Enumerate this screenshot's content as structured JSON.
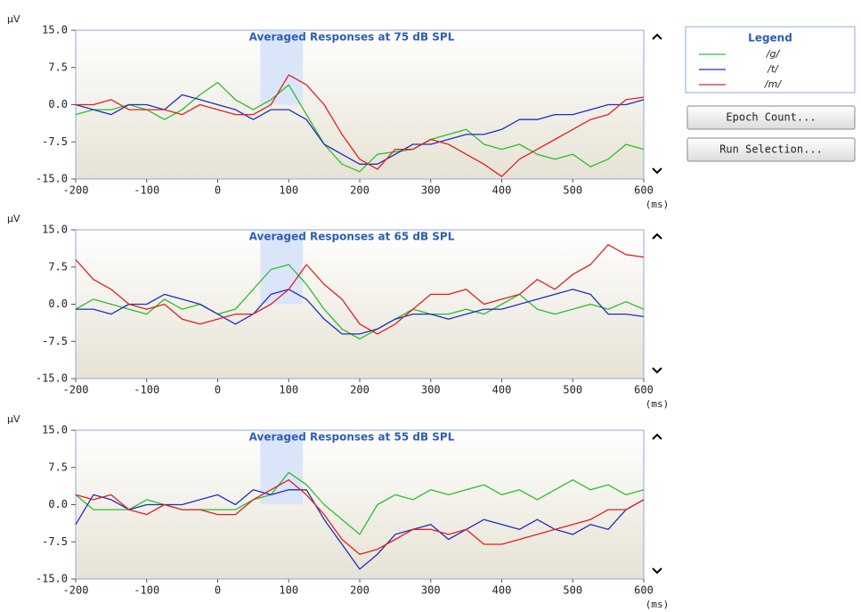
{
  "legend": {
    "title": "Legend"
  },
  "buttons": [
    "Epoch Count...",
    "Run Selection..."
  ],
  "chart_data": [
    {
      "type": "line",
      "title": "Averaged Responses at 75 dB SPL",
      "y_label": "µV",
      "x_label": "(ms)",
      "xlim": [
        -200,
        600
      ],
      "xticks": [
        -200,
        -100,
        0,
        100,
        200,
        300,
        400,
        500,
        600
      ],
      "ylim": [
        -15,
        15
      ],
      "yticks": [
        {
          "value": 15,
          "label": "15.0"
        },
        7.5,
        {
          "value": 0,
          "label": "0.0"
        },
        -7.5,
        {
          "value": -15,
          "label": "-15.0"
        }
      ],
      "shaded_region": [
        60,
        120
      ],
      "x": [
        -200,
        -175,
        -150,
        -125,
        -100,
        -75,
        -50,
        -25,
        0,
        25,
        50,
        75,
        100,
        125,
        150,
        175,
        200,
        225,
        250,
        275,
        300,
        325,
        350,
        375,
        400,
        425,
        450,
        475,
        500,
        525,
        550,
        575,
        600
      ],
      "series": [
        {
          "name": "/g/",
          "color": "#2bbf2b",
          "values": [
            -2,
            -1,
            -1,
            0,
            -1,
            -3,
            -1,
            2,
            4.5,
            1,
            -1,
            1,
            4,
            -2,
            -8,
            -12,
            -13.5,
            -10,
            -9.5,
            -9,
            -7,
            -6,
            -5,
            -8,
            -9,
            -8,
            -10,
            -11,
            -10,
            -12.5,
            -11,
            -8,
            -9
          ]
        },
        {
          "name": "/t/",
          "color": "#1f2fbf",
          "values": [
            0,
            -1,
            -2,
            0,
            0,
            -1,
            2,
            1,
            0,
            -1,
            -3,
            -1,
            -1,
            -3,
            -8,
            -10,
            -12,
            -12,
            -10,
            -8,
            -8,
            -7,
            -6,
            -6,
            -5,
            -3,
            -3,
            -2,
            -2,
            -1,
            0,
            0,
            1
          ]
        },
        {
          "name": "/m/",
          "color": "#e02020",
          "values": [
            0,
            0,
            1,
            -1,
            -1,
            -1,
            -2,
            0,
            -1,
            -2,
            -2,
            0,
            6,
            4,
            0,
            -6,
            -11,
            -13,
            -9,
            -9,
            -7,
            -8,
            -10,
            -12,
            -14.5,
            -11,
            -9,
            -7,
            -5,
            -3,
            -2,
            1,
            1.5
          ]
        }
      ]
    },
    {
      "type": "line",
      "title": "Averaged Responses at 65 dB SPL",
      "y_label": "µV",
      "x_label": "(ms)",
      "xlim": [
        -200,
        600
      ],
      "xticks": [
        -200,
        -100,
        0,
        100,
        200,
        300,
        400,
        500,
        600
      ],
      "ylim": [
        -15,
        15
      ],
      "yticks": [
        {
          "value": 15,
          "label": "15.0"
        },
        7.5,
        {
          "value": 0,
          "label": "0.0"
        },
        -7.5,
        {
          "value": -15,
          "label": "-15.0"
        }
      ],
      "shaded_region": [
        60,
        120
      ],
      "x": [
        -200,
        -175,
        -150,
        -125,
        -100,
        -75,
        -50,
        -25,
        0,
        25,
        50,
        75,
        100,
        125,
        150,
        175,
        200,
        225,
        250,
        275,
        300,
        325,
        350,
        375,
        400,
        425,
        450,
        475,
        500,
        525,
        550,
        575,
        600
      ],
      "series": [
        {
          "name": "/g/",
          "color": "#2bbf2b",
          "values": [
            -1,
            1,
            0,
            -1,
            -2,
            1,
            -1,
            0,
            -2,
            -1,
            3,
            7,
            8,
            4,
            -1,
            -5,
            -7,
            -5,
            -3,
            -1,
            -2,
            -2,
            -1,
            -2,
            0,
            2,
            -1,
            -2,
            -1,
            0,
            -1,
            0.5,
            -1
          ]
        },
        {
          "name": "/t/",
          "color": "#1f2fbf",
          "values": [
            -1,
            -1,
            -2,
            0,
            0,
            2,
            1,
            0,
            -2,
            -4,
            -2,
            2,
            3,
            1,
            -3,
            -6,
            -6,
            -5,
            -3,
            -2,
            -2,
            -3,
            -2,
            -1,
            -1,
            0,
            1,
            2,
            3,
            2,
            -2,
            -2,
            -2.5
          ]
        },
        {
          "name": "/m/",
          "color": "#e02020",
          "values": [
            9,
            5,
            3,
            0,
            -1,
            0,
            -3,
            -4,
            -3,
            -2,
            -2,
            0,
            3,
            8,
            4,
            1,
            -4,
            -6,
            -4,
            -1,
            2,
            2,
            3,
            0,
            1,
            2,
            5,
            3,
            6,
            8,
            12,
            10,
            9.5
          ]
        }
      ]
    },
    {
      "type": "line",
      "title": "Averaged Responses at 55 dB SPL",
      "y_label": "µV",
      "x_label": "(ms)",
      "xlim": [
        -200,
        600
      ],
      "xticks": [
        -200,
        -100,
        0,
        100,
        200,
        300,
        400,
        500,
        600
      ],
      "ylim": [
        -15,
        15
      ],
      "yticks": [
        {
          "value": 15,
          "label": "15.0"
        },
        7.5,
        {
          "value": 0,
          "label": "0.0"
        },
        -7.5,
        {
          "value": -15,
          "label": "-15.0"
        }
      ],
      "shaded_region": [
        60,
        120
      ],
      "x": [
        -200,
        -175,
        -150,
        -125,
        -100,
        -75,
        -50,
        -25,
        0,
        25,
        50,
        75,
        100,
        125,
        150,
        175,
        200,
        225,
        250,
        275,
        300,
        325,
        350,
        375,
        400,
        425,
        450,
        475,
        500,
        525,
        550,
        575,
        600
      ],
      "series": [
        {
          "name": "/g/",
          "color": "#2bbf2b",
          "values": [
            2,
            -1,
            -1,
            -1,
            1,
            0,
            -1,
            -1,
            -1,
            -1,
            1,
            2,
            6.5,
            4,
            0,
            -3,
            -6,
            0,
            2,
            1,
            3,
            2,
            3,
            4,
            2,
            3,
            1,
            3,
            5,
            3,
            4,
            2,
            3
          ]
        },
        {
          "name": "/t/",
          "color": "#1f2fbf",
          "values": [
            -4,
            2,
            1,
            -1,
            0,
            0,
            0,
            1,
            2,
            0,
            3,
            2,
            3,
            3,
            -3,
            -8,
            -13,
            -10,
            -6,
            -5,
            -4,
            -7,
            -5,
            -3,
            -4,
            -5,
            -3,
            -5,
            -6,
            -4,
            -5,
            -1,
            1
          ]
        },
        {
          "name": "/m/",
          "color": "#e02020",
          "values": [
            2,
            1,
            2,
            -1,
            -2,
            0,
            -1,
            -1,
            -2,
            -2,
            1,
            3,
            5,
            2,
            -2,
            -7,
            -10,
            -9,
            -7,
            -5,
            -5,
            -6,
            -5,
            -8,
            -8,
            -7,
            -6,
            -5,
            -4,
            -3,
            -1,
            -1,
            1
          ]
        }
      ]
    }
  ]
}
